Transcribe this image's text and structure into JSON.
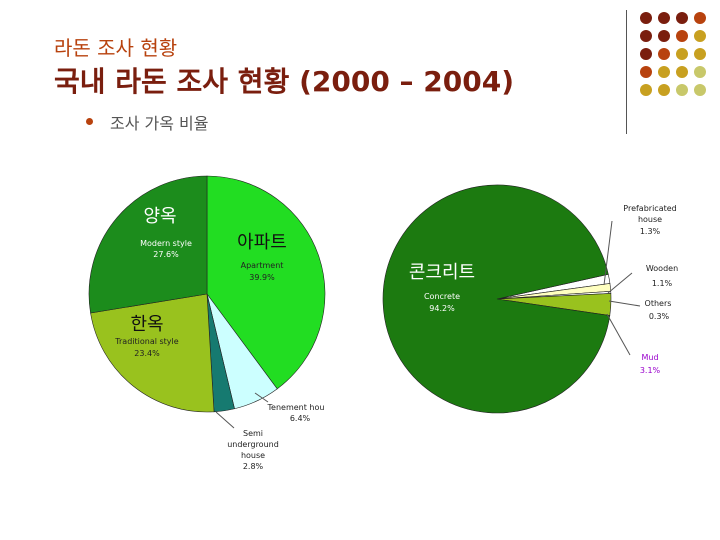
{
  "header": {
    "subtitle": "라돈 조사 현황",
    "title": "국내 라돈 조사 현황 (2000 – 2004)",
    "bullet": "조사 가옥 비율"
  },
  "decor": {
    "dot_colors": [
      [
        "#7a1e0e",
        "#7a1e0e",
        "#7a1e0e",
        "#b8420e"
      ],
      [
        "#7a1e0e",
        "#7a1e0e",
        "#b8420e",
        "#c8a020"
      ],
      [
        "#7a1e0e",
        "#b8420e",
        "#c8a020",
        "#c8a020"
      ],
      [
        "#b8420e",
        "#c8a020",
        "#c8a020",
        "#c8c86a"
      ],
      [
        "#c8a020",
        "#c8a020",
        "#c8c86a",
        "#c8c86a"
      ]
    ]
  },
  "chart_data": [
    {
      "type": "pie",
      "slices": [
        {
          "korean": "아파트",
          "label": "Apartment",
          "percent": "39.9%",
          "value": 39.9,
          "color": "#22dd22"
        },
        {
          "korean": "",
          "label": "Tenement hou",
          "percent": "6.4%",
          "value": 6.4,
          "color": "#ccffff"
        },
        {
          "korean": "",
          "label": "Semi underground house",
          "percent": "2.8%",
          "value": 2.8,
          "color": "#167a70"
        },
        {
          "korean": "한옥",
          "label": "Traditional style",
          "percent": "23.4%",
          "value": 23.4,
          "color": "#99c21e"
        },
        {
          "korean": "양옥",
          "label": "Modern style",
          "percent": "27.6%",
          "value": 27.6,
          "color": "#1c8c1c"
        }
      ]
    },
    {
      "type": "pie",
      "slices": [
        {
          "korean": "",
          "label": "Prefabricated house",
          "percent": "1.3%",
          "value": 1.3,
          "color": "#ffffff"
        },
        {
          "korean": "",
          "label": "Wooden",
          "percent": "1.1%",
          "value": 1.1,
          "color": "#ffffc0"
        },
        {
          "korean": "",
          "label": "Others",
          "percent": "0.3%",
          "value": 0.3,
          "color": "#ffffff"
        },
        {
          "korean": "",
          "label": "Mud",
          "percent": "3.1%",
          "value": 3.1,
          "color": "#99c21e"
        },
        {
          "korean": "콘크리트",
          "label": "Concrete",
          "percent": "94.2%",
          "value": 94.2,
          "color": "#1c7a10"
        }
      ]
    }
  ]
}
